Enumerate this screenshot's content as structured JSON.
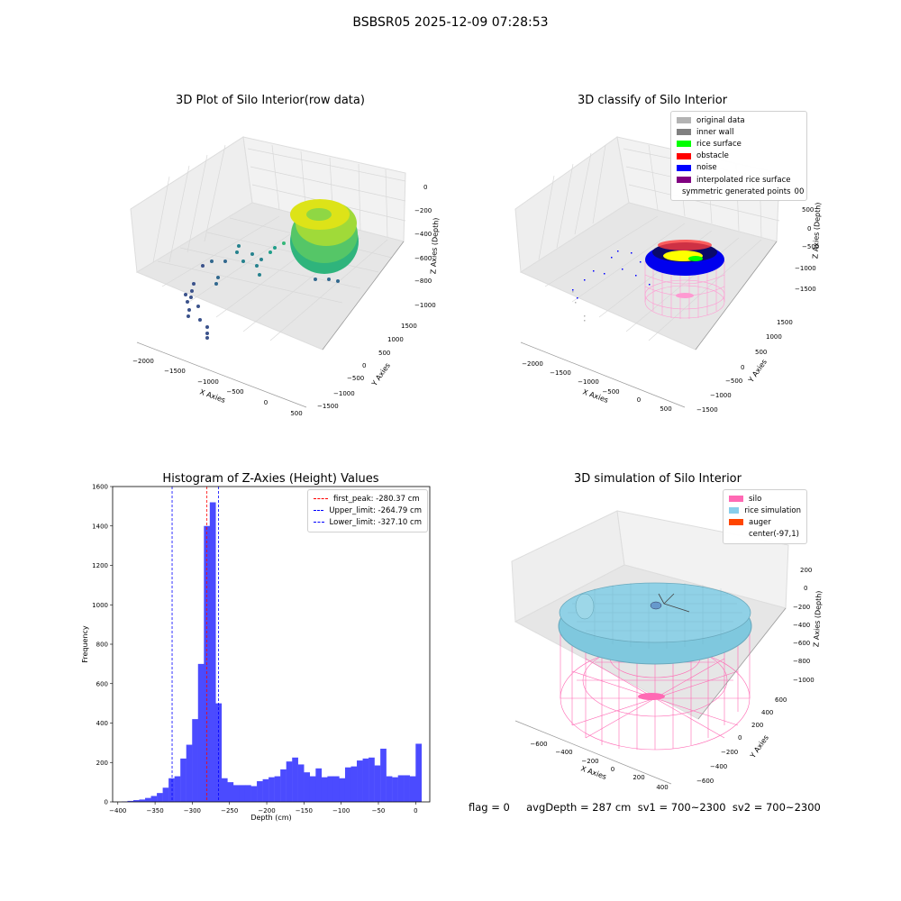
{
  "figure": {
    "suptitle": "BSBSR05 2025-12-09 07:28:53",
    "footer": "flag = 0     avgDepth = 287 cm  sv1 = 700~2300  sv2 = 700~2300"
  },
  "colors": {
    "histogram_bar": "#4b4bff",
    "first_peak": "#ff0000",
    "limits": "#0000ff",
    "original_data": "#b3b3b3",
    "inner_wall": "#808080",
    "rice_surface": "#00ff00",
    "obstacle": "#ff0000",
    "noise": "#0000ff",
    "interpolated_rice_surface": "#800080",
    "symmetric_generated_points": "#ffff00",
    "silo": "#ff69b4",
    "rice_simulation": "#87ceeb",
    "auger": "#ff4500"
  },
  "chart_data": [
    {
      "type": "scatter",
      "projection": "3d",
      "title": "3D Plot of Silo Interior(row data)",
      "xlabel": "X Axies",
      "ylabel": "Y Axies",
      "zlabel": "Z Axies (Depth)",
      "xticks": [
        "−2000",
        "−1500",
        "−1000",
        "−500",
        "0",
        "500"
      ],
      "yticks": [
        "−1500",
        "−1000",
        "−500",
        "0",
        "500",
        "1000",
        "1500"
      ],
      "zticks": [
        "−1000",
        "−800",
        "−600",
        "−400",
        "−200",
        "0"
      ],
      "colormap": "viridis"
    },
    {
      "type": "scatter",
      "projection": "3d",
      "title": "3D classify of Silo Interior",
      "xlabel": "X Axies",
      "ylabel": "Y Axies",
      "zlabel": "Z Axies (Depth)",
      "xticks": [
        "−2000",
        "−1500",
        "−1000",
        "−500",
        "0",
        "500"
      ],
      "yticks": [
        "−1500",
        "−1000",
        "−500",
        "0",
        "500",
        "1000",
        "1500"
      ],
      "zticks": [
        "−1500",
        "−1000",
        "−500",
        "0",
        "500"
      ],
      "ztick_partial": "00",
      "legend": [
        "original data",
        "inner wall",
        "rice surface",
        "obstacle",
        "noise",
        "interpolated rice surface",
        "symmetric generated points"
      ],
      "legend_placement": "upper right"
    },
    {
      "type": "bar",
      "title": "Histogram of Z-Axies (Height) Values",
      "xlabel": "Depth (cm)",
      "ylabel": "Frequency",
      "xlim": [
        -407,
        19
      ],
      "ylim": [
        0,
        1600
      ],
      "xticks": [
        -400,
        -350,
        -300,
        -250,
        -200,
        -150,
        -100,
        -50,
        0
      ],
      "xticklabels": [
        "−400",
        "−350",
        "−300",
        "−250",
        "−200",
        "−150",
        "−100",
        "−50",
        "0"
      ],
      "yticks": [
        0,
        200,
        400,
        600,
        800,
        1000,
        1200,
        1400,
        1600
      ],
      "bin_start": -395,
      "bin_width": 7.9,
      "values": [
        2,
        5,
        9,
        12,
        20,
        30,
        45,
        72,
        120,
        130,
        220,
        290,
        420,
        700,
        1400,
        1520,
        500,
        120,
        100,
        85,
        85,
        85,
        80,
        105,
        115,
        125,
        130,
        165,
        205,
        225,
        190,
        150,
        130,
        170,
        125,
        130,
        130,
        120,
        175,
        180,
        210,
        220,
        225,
        185,
        270,
        130,
        125,
        135,
        135,
        130,
        295
      ],
      "lines": [
        {
          "name": "first_peak: -280.37 cm",
          "x": -280.37,
          "color": "#ff0000"
        },
        {
          "name": "Upper_limit: -264.79 cm",
          "x": -264.79,
          "color": "#0000ff"
        },
        {
          "name": "Lower_limit: -327.10 cm",
          "x": -327.1,
          "color": "#0000ff"
        }
      ],
      "legend_placement": "upper right"
    },
    {
      "type": "scatter",
      "projection": "3d",
      "title": "3D simulation of Silo Interior",
      "xlabel": "X Axies",
      "ylabel": "Y Axies",
      "zlabel": "Z Axies (Depth)",
      "xticks": [
        "−600",
        "−400",
        "−200",
        "0",
        "200",
        "400"
      ],
      "yticks": [
        "−600",
        "−400",
        "−200",
        "0",
        "200",
        "400",
        "600"
      ],
      "zticks": [
        "−1000",
        "−800",
        "−600",
        "−400",
        "−200",
        "0",
        "200"
      ],
      "legend": [
        "silo",
        "rice simulation",
        "auger",
        "center(-97,1)"
      ],
      "legend_placement": "upper right"
    }
  ]
}
